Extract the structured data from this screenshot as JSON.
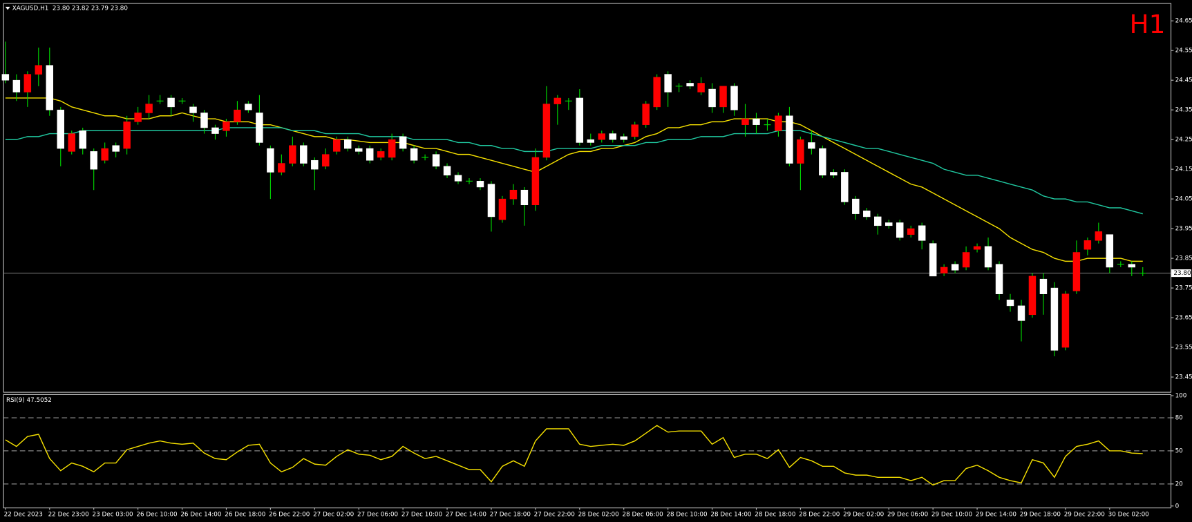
{
  "chart_data": [
    {
      "type": "candlestick",
      "title": "XAGUSD,H1  23.80 23.82 23.79 23.80",
      "annotation": "H1",
      "annotation_color": "#ff0000",
      "categories": [
        "22 Dec 2023",
        null,
        null,
        null,
        "22 Dec 23:00",
        null,
        null,
        null,
        "23 Dec 03:00",
        null,
        null,
        null,
        "26 Dec 10:00",
        null,
        null,
        null,
        "26 Dec 14:00",
        null,
        null,
        null,
        "26 Dec 18:00",
        null,
        null,
        null,
        "26 Dec 22:00",
        null,
        null,
        null,
        "27 Dec 02:00",
        null,
        null,
        null,
        "27 Dec 06:00",
        null,
        null,
        null,
        "27 Dec 10:00",
        null,
        null,
        null,
        "27 Dec 14:00",
        null,
        null,
        null,
        "27 Dec 18:00",
        null,
        null,
        null,
        "27 Dec 22:00",
        null,
        null,
        null,
        "28 Dec 02:00",
        null,
        null,
        null,
        "28 Dec 06:00",
        null,
        null,
        null,
        "28 Dec 10:00",
        null,
        null,
        null,
        "28 Dec 14:00",
        null,
        null,
        null,
        "28 Dec 18:00",
        null,
        null,
        null,
        "28 Dec 22:00",
        null,
        null,
        null,
        "29 Dec 02:00",
        null,
        null,
        null,
        "29 Dec 06:00",
        null,
        null,
        null,
        "29 Dec 10:00",
        null,
        null,
        null,
        "29 Dec 14:00",
        null,
        null,
        null,
        "29 Dec 18:00",
        null,
        null,
        null,
        "29 Dec 22:00",
        null,
        null,
        null,
        "30 Dec 02:00",
        null,
        null,
        null
      ],
      "open": [
        24.47,
        24.45,
        24.41,
        24.47,
        24.5,
        24.35,
        24.21,
        24.28,
        24.21,
        24.18,
        24.23,
        24.22,
        24.31,
        24.34,
        24.38,
        24.39,
        24.38,
        24.36,
        24.34,
        24.29,
        24.28,
        24.31,
        24.37,
        24.34,
        24.22,
        24.14,
        24.17,
        24.23,
        24.18,
        24.16,
        24.21,
        24.25,
        24.22,
        24.22,
        24.19,
        24.19,
        24.26,
        24.22,
        24.19,
        24.2,
        24.16,
        24.13,
        24.11,
        24.11,
        24.1,
        23.98,
        24.05,
        24.08,
        24.03,
        24.19,
        24.37,
        24.38,
        24.39,
        24.25,
        24.25,
        24.27,
        24.26,
        24.26,
        24.3,
        24.36,
        24.47,
        24.43,
        24.44,
        24.41,
        24.42,
        24.36,
        24.43,
        24.3,
        24.32,
        24.3,
        24.28,
        24.33,
        24.17,
        24.24,
        24.22,
        24.14,
        24.14,
        24.05,
        24.01,
        23.99,
        23.97,
        23.97,
        23.93,
        23.96,
        23.9,
        23.8,
        23.83,
        23.82,
        23.88,
        23.89,
        23.83,
        23.71,
        23.69,
        23.66,
        23.78,
        23.75,
        23.55,
        23.74,
        23.88,
        23.91,
        23.93,
        23.83,
        23.83,
        23.8
      ],
      "high": [
        24.58,
        24.47,
        24.48,
        24.56,
        24.56,
        24.36,
        24.28,
        24.29,
        24.22,
        24.24,
        24.24,
        24.33,
        24.36,
        24.4,
        24.4,
        24.4,
        24.39,
        24.37,
        24.35,
        24.3,
        24.32,
        24.38,
        24.38,
        24.4,
        24.23,
        24.2,
        24.26,
        24.24,
        24.19,
        24.22,
        24.26,
        24.26,
        24.23,
        24.23,
        24.22,
        24.27,
        24.27,
        24.23,
        24.2,
        24.21,
        24.17,
        24.14,
        24.12,
        24.12,
        24.11,
        24.06,
        24.1,
        24.09,
        24.22,
        24.43,
        24.4,
        24.39,
        24.42,
        24.27,
        24.28,
        24.28,
        24.27,
        24.31,
        24.38,
        24.47,
        24.48,
        24.44,
        24.45,
        24.46,
        24.44,
        24.43,
        24.44,
        24.37,
        24.34,
        24.32,
        24.34,
        24.36,
        24.26,
        24.28,
        24.23,
        24.15,
        24.15,
        24.06,
        24.02,
        24.0,
        23.98,
        23.98,
        23.96,
        23.97,
        23.91,
        23.83,
        23.84,
        23.89,
        23.9,
        23.92,
        23.84,
        23.73,
        23.71,
        23.8,
        23.8,
        23.77,
        23.74,
        23.91,
        23.92,
        23.97,
        23.93,
        23.84,
        23.84,
        23.82
      ],
      "low": [
        24.44,
        24.38,
        24.36,
        24.43,
        24.33,
        24.16,
        24.2,
        24.2,
        24.08,
        24.17,
        24.19,
        24.2,
        24.3,
        24.32,
        24.37,
        24.33,
        24.37,
        24.31,
        24.27,
        24.25,
        24.26,
        24.3,
        24.34,
        24.23,
        24.05,
        24.13,
        24.16,
        24.16,
        24.08,
        24.15,
        24.2,
        24.21,
        24.2,
        24.17,
        24.18,
        24.18,
        24.21,
        24.17,
        24.18,
        24.15,
        24.12,
        24.1,
        24.1,
        24.08,
        23.94,
        23.97,
        24.03,
        23.96,
        24.01,
        24.18,
        24.3,
        24.35,
        24.23,
        24.23,
        24.24,
        24.24,
        24.24,
        24.25,
        24.29,
        24.35,
        24.36,
        24.41,
        24.42,
        24.4,
        24.34,
        24.34,
        24.33,
        24.26,
        24.27,
        24.28,
        24.26,
        24.16,
        24.08,
        24.2,
        24.12,
        24.12,
        24.03,
        23.98,
        23.98,
        23.93,
        23.95,
        23.91,
        23.92,
        23.88,
        23.79,
        23.79,
        23.8,
        23.81,
        23.87,
        23.81,
        23.71,
        23.67,
        23.57,
        23.65,
        23.66,
        23.52,
        23.54,
        23.73,
        23.86,
        23.9,
        23.8,
        23.82,
        23.79,
        23.79
      ],
      "close": [
        24.45,
        24.41,
        24.47,
        24.5,
        24.35,
        24.22,
        24.27,
        24.22,
        24.15,
        24.22,
        24.21,
        24.31,
        24.34,
        24.37,
        24.38,
        24.36,
        24.38,
        24.34,
        24.29,
        24.27,
        24.31,
        24.35,
        24.35,
        24.24,
        24.14,
        24.17,
        24.23,
        24.17,
        24.15,
        24.2,
        24.25,
        24.22,
        24.21,
        24.18,
        24.21,
        24.25,
        24.22,
        24.18,
        24.19,
        24.16,
        24.13,
        24.11,
        24.11,
        24.09,
        23.99,
        24.05,
        24.08,
        24.03,
        24.19,
        24.37,
        24.39,
        24.38,
        24.24,
        24.24,
        24.27,
        24.25,
        24.25,
        24.3,
        24.37,
        24.46,
        24.41,
        24.43,
        24.43,
        24.44,
        24.36,
        24.43,
        24.35,
        24.32,
        24.3,
        24.3,
        24.33,
        24.17,
        24.25,
        24.22,
        24.13,
        24.13,
        24.04,
        24.0,
        23.99,
        23.96,
        23.96,
        23.92,
        23.95,
        23.91,
        23.79,
        23.82,
        23.81,
        23.87,
        23.89,
        23.82,
        23.73,
        23.69,
        23.64,
        23.79,
        23.73,
        23.54,
        23.73,
        23.87,
        23.91,
        23.94,
        23.82,
        23.83,
        23.82,
        23.8
      ],
      "up_color": "#ff0000",
      "down_color": "#ffffff",
      "wick_color": "#00e000",
      "overlays": [
        {
          "color": "#f5e000",
          "values": [
            24.39,
            24.39,
            24.39,
            24.39,
            24.39,
            24.38,
            24.36,
            24.35,
            24.34,
            24.33,
            24.33,
            24.32,
            24.32,
            24.32,
            24.33,
            24.33,
            24.34,
            24.33,
            24.32,
            24.32,
            24.31,
            24.31,
            24.31,
            24.3,
            24.3,
            24.29,
            24.28,
            24.27,
            24.26,
            24.26,
            24.25,
            24.25,
            24.245,
            24.24,
            24.24,
            24.24,
            24.24,
            24.23,
            24.22,
            24.22,
            24.21,
            24.2,
            24.2,
            24.19,
            24.18,
            24.17,
            24.16,
            24.15,
            24.14,
            24.16,
            24.18,
            24.2,
            24.21,
            24.21,
            24.22,
            24.22,
            24.23,
            24.24,
            24.26,
            24.27,
            24.29,
            24.29,
            24.3,
            24.3,
            24.31,
            24.31,
            24.32,
            24.32,
            24.32,
            24.32,
            24.31,
            24.31,
            24.3,
            24.28,
            24.26,
            24.24,
            24.22,
            24.2,
            24.18,
            24.16,
            24.14,
            24.12,
            24.1,
            24.09,
            24.07,
            24.05,
            24.03,
            24.01,
            23.99,
            23.97,
            23.95,
            23.92,
            23.9,
            23.88,
            23.87,
            23.85,
            23.84,
            23.84,
            23.85,
            23.85,
            23.85,
            23.85,
            23.84,
            23.84
          ]
        },
        {
          "color": "#20c8a0",
          "values": [
            24.25,
            24.25,
            24.26,
            24.26,
            24.27,
            24.27,
            24.27,
            24.28,
            24.28,
            24.28,
            24.28,
            24.28,
            24.28,
            24.28,
            24.28,
            24.28,
            24.28,
            24.28,
            24.28,
            24.28,
            24.29,
            24.29,
            24.29,
            24.29,
            24.29,
            24.29,
            24.28,
            24.28,
            24.28,
            24.27,
            24.27,
            24.27,
            24.27,
            24.26,
            24.26,
            24.26,
            24.26,
            24.25,
            24.25,
            24.25,
            24.25,
            24.24,
            24.24,
            24.23,
            24.23,
            24.22,
            24.22,
            24.21,
            24.21,
            24.21,
            24.22,
            24.22,
            24.22,
            24.22,
            24.23,
            24.23,
            24.23,
            24.23,
            24.24,
            24.24,
            24.25,
            24.25,
            24.25,
            24.26,
            24.26,
            24.26,
            24.27,
            24.27,
            24.27,
            24.27,
            24.28,
            24.28,
            24.28,
            24.27,
            24.26,
            24.25,
            24.24,
            24.23,
            24.22,
            24.22,
            24.21,
            24.2,
            24.19,
            24.18,
            24.17,
            24.15,
            24.14,
            24.13,
            24.13,
            24.12,
            24.11,
            24.1,
            24.09,
            24.08,
            24.06,
            24.05,
            24.05,
            24.04,
            24.04,
            24.03,
            24.02,
            24.02,
            24.01,
            24.0
          ]
        }
      ],
      "ylim": [
        23.4,
        24.71
      ],
      "yticks": [
        24.65,
        24.55,
        24.45,
        24.35,
        24.25,
        24.15,
        24.05,
        23.95,
        23.85,
        23.75,
        23.65,
        23.55,
        23.45
      ],
      "last_price": {
        "value": 23.8,
        "label": "23.80"
      },
      "grid": false
    },
    {
      "type": "line",
      "title": "RSI(9) 47.5052",
      "color": "#f5e000",
      "values": [
        60,
        54,
        63,
        65,
        43,
        32,
        39,
        36,
        31,
        39,
        39,
        51,
        54,
        57,
        59,
        57,
        56,
        57,
        48,
        43,
        42,
        49,
        55,
        56,
        39,
        31,
        35,
        43,
        38,
        37,
        45,
        51,
        47,
        46,
        42,
        45,
        54,
        48,
        43,
        45,
        41,
        37,
        33,
        33,
        22,
        36,
        41,
        36,
        59,
        70,
        70,
        70,
        56,
        54,
        55,
        56,
        55,
        59,
        66,
        73,
        67,
        68,
        68,
        68,
        56,
        62,
        44,
        47,
        47,
        43,
        51,
        35,
        44,
        41,
        36,
        36,
        30,
        28,
        28,
        26,
        26,
        26,
        23,
        26,
        19,
        23,
        23,
        34,
        37,
        32,
        26,
        23,
        21,
        42,
        39,
        26,
        45,
        54,
        56,
        59,
        50,
        50,
        48,
        47.5052
      ],
      "ylim": [
        -1.4,
        101.4
      ],
      "yticks": [
        100,
        80,
        50,
        20,
        0
      ],
      "levels": [
        80,
        50,
        20
      ]
    }
  ]
}
